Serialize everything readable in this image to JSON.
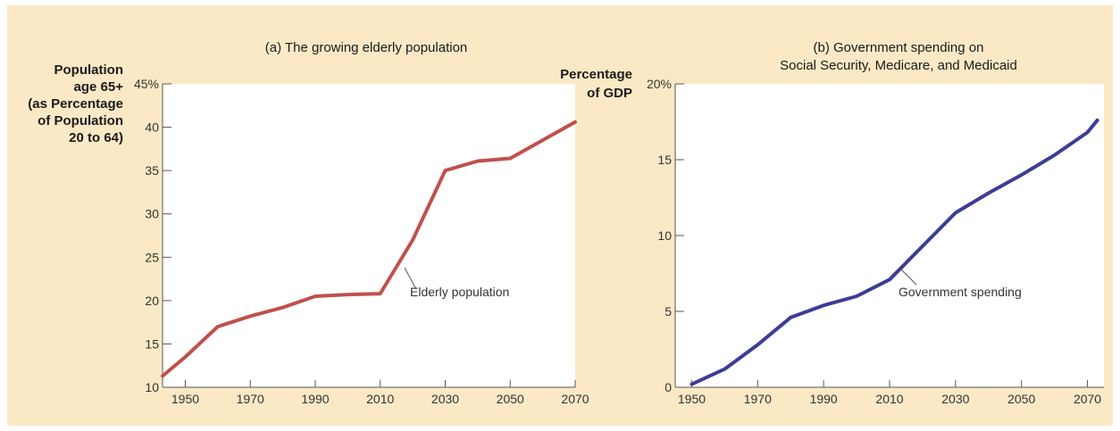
{
  "chart_data": [
    {
      "type": "line",
      "title": "(a) The growing elderly population",
      "ylabel_lines": [
        "Population",
        "age 65+",
        "(as Percentage",
        "of Population",
        "20 to 64)"
      ],
      "xlabel": "",
      "xlim": [
        1943,
        2070
      ],
      "ylim": [
        10,
        45
      ],
      "x_ticks": [
        1950,
        1970,
        1990,
        2010,
        2030,
        2050,
        2070
      ],
      "y_ticks": [
        10,
        15,
        20,
        25,
        30,
        35,
        40,
        45
      ],
      "y_tick_labels": [
        "10",
        "15",
        "20",
        "25",
        "30",
        "35",
        "40",
        "45%"
      ],
      "grid": false,
      "color": "#c0504d",
      "annotation": {
        "text": "Elderly population",
        "x": 2018,
        "y": 24.5
      },
      "series": [
        {
          "x": [
            1943,
            1950,
            1960,
            1970,
            1980,
            1990,
            2000,
            2010,
            2020,
            2030,
            2040,
            2050,
            2060,
            2070
          ],
          "values": [
            11.3,
            13.5,
            17.0,
            18.2,
            19.2,
            20.5,
            20.7,
            20.8,
            27.0,
            35.0,
            36.1,
            36.4,
            38.5,
            40.6
          ]
        }
      ]
    },
    {
      "type": "line",
      "title_lines": [
        "(b) Government spending on",
        "Social Security, Medicare, and Medicaid"
      ],
      "ylabel_lines": [
        "Percentage",
        "of GDP"
      ],
      "xlabel": "",
      "xlim": [
        1945,
        2075
      ],
      "ylim": [
        0,
        20
      ],
      "x_ticks": [
        1950,
        1970,
        1990,
        2010,
        2030,
        2050,
        2070
      ],
      "y_ticks": [
        0,
        5,
        10,
        15,
        20
      ],
      "y_tick_labels": [
        "0",
        "5",
        "10",
        "15",
        "20%"
      ],
      "grid": false,
      "color": "#3c3d96",
      "annotation": {
        "text": "Government spending",
        "x": 2015,
        "y": 7.8
      },
      "series": [
        {
          "x": [
            1950,
            1960,
            1970,
            1980,
            1990,
            2000,
            2010,
            2020,
            2030,
            2040,
            2050,
            2060,
            2070,
            2073
          ],
          "values": [
            0.2,
            1.2,
            2.8,
            4.6,
            5.4,
            6.0,
            7.1,
            9.3,
            11.5,
            12.8,
            14.0,
            15.3,
            16.8,
            17.6
          ]
        }
      ]
    }
  ]
}
